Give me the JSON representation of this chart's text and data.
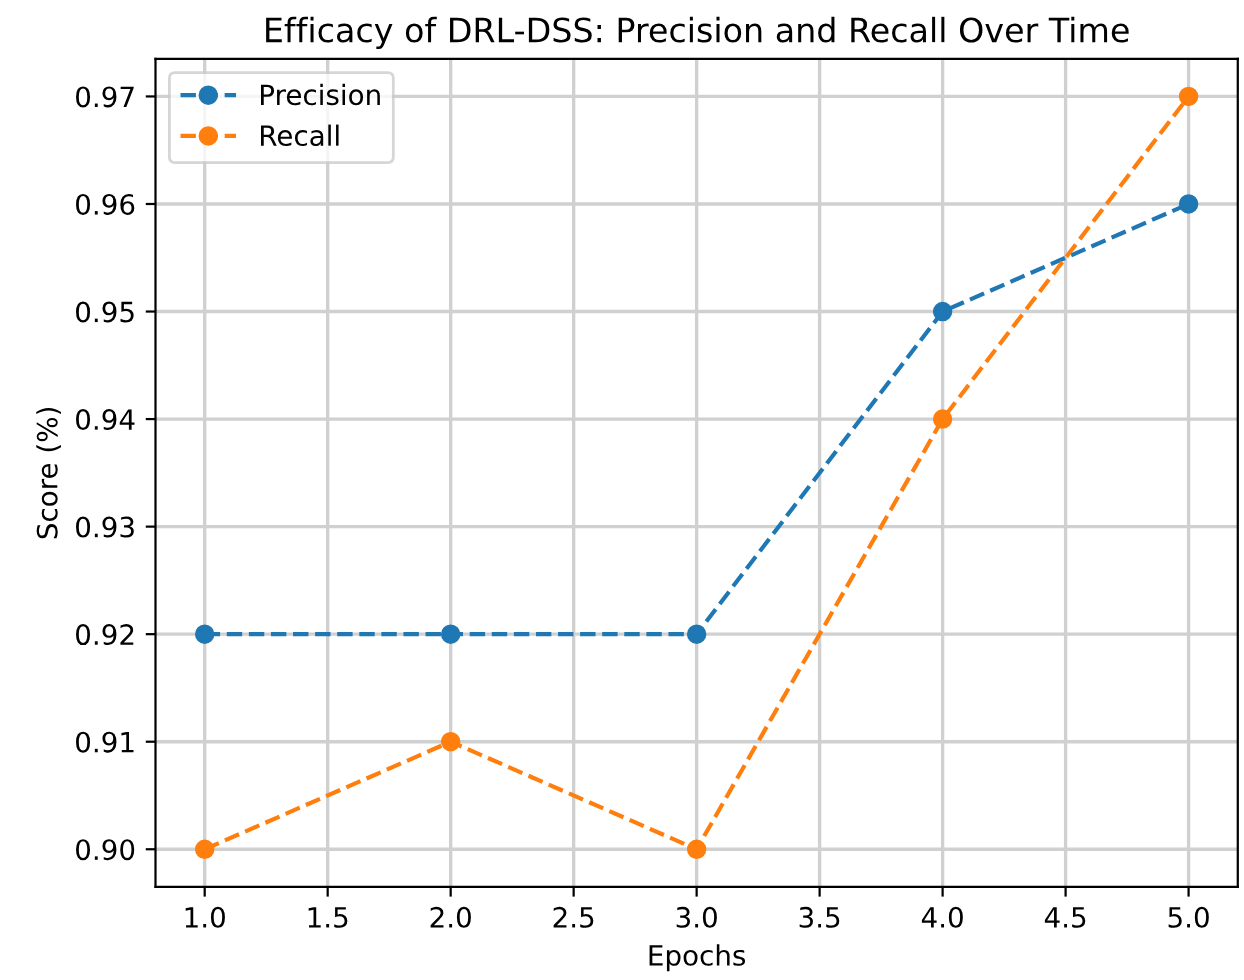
{
  "chart_data": {
    "type": "line",
    "title": "Efficacy of DRL-DSS: Precision and Recall Over Time",
    "xlabel": "Epochs",
    "ylabel": "Score (%)",
    "x": [
      1.0,
      2.0,
      3.0,
      4.0,
      5.0
    ],
    "series": [
      {
        "name": "Precision",
        "color": "#1f77b4",
        "values": [
          0.92,
          0.92,
          0.92,
          0.95,
          0.96
        ]
      },
      {
        "name": "Recall",
        "color": "#ff7f0e",
        "values": [
          0.9,
          0.91,
          0.9,
          0.94,
          0.97
        ]
      }
    ],
    "xlim": [
      0.8,
      5.2
    ],
    "xticks": [
      {
        "value": 1.0,
        "label": "1.0"
      },
      {
        "value": 1.5,
        "label": "1.5"
      },
      {
        "value": 2.0,
        "label": "2.0"
      },
      {
        "value": 2.5,
        "label": "2.5"
      },
      {
        "value": 3.0,
        "label": "3.0"
      },
      {
        "value": 3.5,
        "label": "3.5"
      },
      {
        "value": 4.0,
        "label": "4.0"
      },
      {
        "value": 4.5,
        "label": "4.5"
      },
      {
        "value": 5.0,
        "label": "5.0"
      }
    ],
    "ylim": [
      0.8965,
      0.9735
    ],
    "yticks": [
      {
        "value": 0.9,
        "label": "0.90"
      },
      {
        "value": 0.91,
        "label": "0.91"
      },
      {
        "value": 0.92,
        "label": "0.92"
      },
      {
        "value": 0.93,
        "label": "0.93"
      },
      {
        "value": 0.94,
        "label": "0.94"
      },
      {
        "value": 0.95,
        "label": "0.95"
      },
      {
        "value": 0.96,
        "label": "0.96"
      },
      {
        "value": 0.97,
        "label": "0.97"
      }
    ],
    "grid": true,
    "legend": "top left",
    "marker": "circle",
    "line_style": "dashed"
  }
}
